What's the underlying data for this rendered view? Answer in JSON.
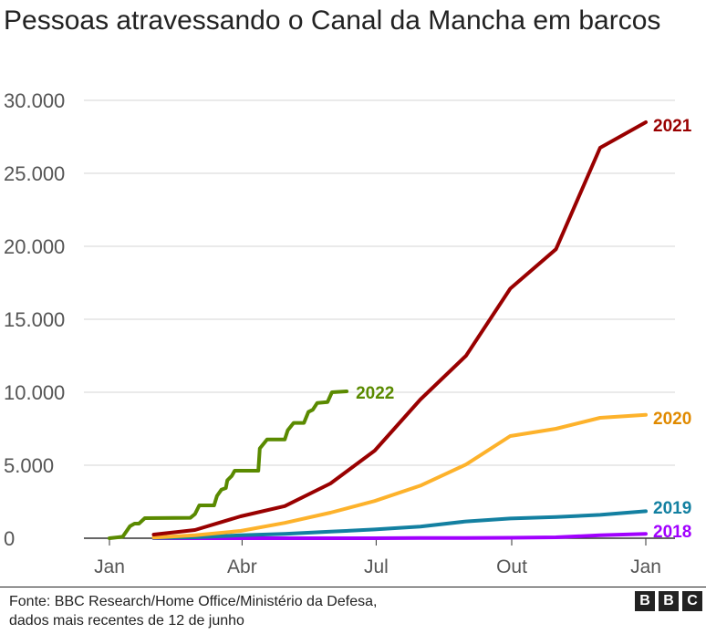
{
  "chart_data": {
    "type": "line",
    "title": "Pessoas atravessando o Canal da Mancha em barcos",
    "xlabel": "",
    "ylabel": "",
    "ylim": [
      0,
      30000
    ],
    "yticks": [
      0,
      5000,
      10000,
      15000,
      20000,
      25000,
      30000
    ],
    "ytick_labels": [
      "0",
      "5.000",
      "10.000",
      "15.000",
      "20.000",
      "25.000",
      "30.000"
    ],
    "xticks": [
      "01-01",
      "04-01",
      "07-01",
      "10-01",
      "12-31"
    ],
    "xtick_labels": [
      "Jan",
      "Abr",
      "Jul",
      "Out",
      "Jan"
    ],
    "grid": true,
    "legend": "direct labels at line ends",
    "series": [
      {
        "name": "2018",
        "color": "#a100ff",
        "label_color": "#a100ff",
        "x": [
          "01-31",
          "02-28",
          "03-31",
          "04-30",
          "05-31",
          "06-30",
          "07-31",
          "08-31",
          "09-30",
          "10-31",
          "11-30",
          "12-31"
        ],
        "values": [
          0,
          0,
          0,
          0,
          0,
          0,
          10,
          20,
          30,
          60,
          200,
          300
        ]
      },
      {
        "name": "2019",
        "color": "#1380a1",
        "label_color": "#1380a1",
        "x": [
          "01-31",
          "02-28",
          "03-31",
          "04-30",
          "05-31",
          "06-30",
          "07-31",
          "08-31",
          "09-30",
          "10-31",
          "11-30",
          "12-31"
        ],
        "values": [
          20,
          60,
          200,
          300,
          450,
          600,
          800,
          1150,
          1350,
          1450,
          1600,
          1850
        ]
      },
      {
        "name": "2020",
        "color": "#fdb22b",
        "label_color": "#e08a00",
        "x": [
          "01-31",
          "02-28",
          "03-31",
          "04-30",
          "05-31",
          "06-30",
          "07-31",
          "08-31",
          "09-30",
          "10-31",
          "11-30",
          "12-31"
        ],
        "values": [
          50,
          200,
          500,
          1050,
          1750,
          2550,
          3600,
          5050,
          7000,
          7500,
          8250,
          8450
        ]
      },
      {
        "name": "2021",
        "color": "#990000",
        "label_color": "#990000",
        "x": [
          "01-31",
          "02-28",
          "03-31",
          "04-30",
          "05-31",
          "06-30",
          "07-31",
          "08-31",
          "09-30",
          "10-31",
          "11-30",
          "12-31"
        ],
        "values": [
          250,
          560,
          1500,
          2200,
          3750,
          6000,
          9500,
          12500,
          17100,
          19800,
          26750,
          28500
        ]
      },
      {
        "name": "2022",
        "color": "#5a8a00",
        "label_color": "#5a8a00",
        "x": [
          "01-01",
          "01-10",
          "01-15",
          "01-18",
          "01-21",
          "01-25",
          "02-25",
          "02-28",
          "03-03",
          "03-13",
          "03-15",
          "03-18",
          "03-21",
          "03-22",
          "03-25",
          "03-27",
          "04-12",
          "04-13",
          "04-18",
          "04-30",
          "05-02",
          "05-06",
          "05-13",
          "05-16",
          "05-19",
          "05-22",
          "05-29",
          "06-01",
          "06-11"
        ],
        "values": [
          0,
          100,
          830,
          1000,
          1000,
          1375,
          1400,
          1650,
          2250,
          2250,
          2900,
          3330,
          3440,
          3960,
          4270,
          4625,
          4625,
          6150,
          6770,
          6770,
          7400,
          7900,
          7900,
          8650,
          8800,
          9270,
          9330,
          10000,
          10060
        ]
      }
    ]
  },
  "footer": {
    "source_line1": "Fonte: BBC Research/Home Office/Ministério da Defesa,",
    "source_line2": "dados mais recentes de 12 de junho",
    "logo": [
      "B",
      "B",
      "C"
    ]
  }
}
